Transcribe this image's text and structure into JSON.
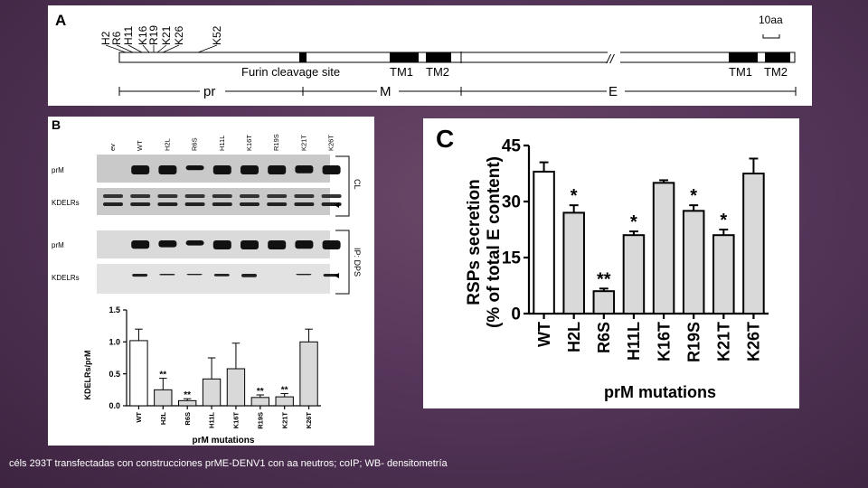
{
  "panel_a": {
    "letter": "A",
    "mutation_sites": [
      "H2",
      "R6",
      "H11",
      "K16",
      "R19",
      "K21",
      "K26",
      "K52"
    ],
    "scale_label": "10aa",
    "features": [
      "Furin cleavage site",
      "TM1",
      "TM2",
      "TM1",
      "TM2"
    ],
    "segments": [
      "pr",
      "M",
      "E"
    ],
    "break_mark": "//"
  },
  "panel_b": {
    "letter": "B",
    "lanes": [
      "ev",
      "WT",
      "H2L",
      "R6S",
      "H11L",
      "K16T",
      "R19S",
      "K21T",
      "K26T"
    ],
    "blot_rows": [
      "prM",
      "KDELRs",
      "prM",
      "KDELRs"
    ],
    "group_labels": [
      "CL",
      "IP: DPS"
    ],
    "chart_data": {
      "type": "bar",
      "categories": [
        "WT",
        "H2L",
        "R6S",
        "H11L",
        "K16T",
        "R19S",
        "K21T",
        "K26T"
      ],
      "values": [
        1.02,
        0.25,
        0.08,
        0.42,
        0.58,
        0.13,
        0.14,
        1.0
      ],
      "errors": [
        0.18,
        0.18,
        0.03,
        0.33,
        0.4,
        0.04,
        0.05,
        0.2
      ],
      "significance": [
        "",
        "**",
        "**",
        "",
        "",
        "**",
        "**",
        ""
      ],
      "xlabel": "prM mutations",
      "ylabel": "KDELRs/prM",
      "ylim": [
        0,
        1.5
      ],
      "yticks": [
        "0.0",
        "0.5",
        "1.0",
        "1.5"
      ]
    }
  },
  "panel_c": {
    "letter": "C",
    "chart_data": {
      "type": "bar",
      "categories": [
        "WT",
        "H2L",
        "R6S",
        "H11L",
        "K16T",
        "R19S",
        "K21T",
        "K26T"
      ],
      "values": [
        38,
        27,
        6,
        21,
        35,
        27.5,
        21,
        37.5
      ],
      "errors": [
        2.5,
        2,
        0.7,
        1,
        0.7,
        1.5,
        1.5,
        4
      ],
      "significance": [
        "",
        "*",
        "**",
        "*",
        "",
        "*",
        "*",
        ""
      ],
      "xlabel": "prM mutations",
      "ylabel_line1": "RSPs secretion",
      "ylabel_line2": "(% of total E content)",
      "ylim": [
        0,
        45
      ],
      "yticks": [
        "0",
        "15",
        "30",
        "45"
      ]
    }
  },
  "caption": "céls 293T transfectadas con construcciones prME-DENV1 con aa neutros; coIP; WB- densitometría"
}
